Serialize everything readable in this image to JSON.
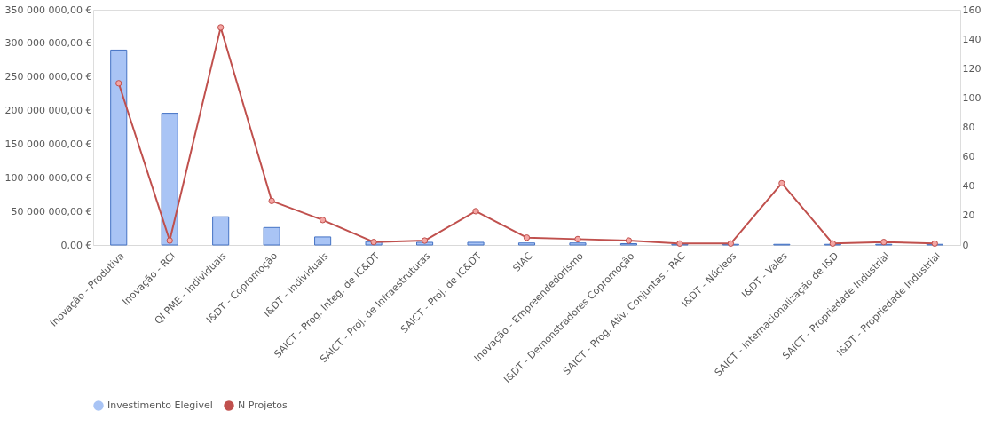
{
  "chart_data": {
    "type": "bar",
    "categories": [
      "Inovação - Produtiva",
      "Inovação - RCI",
      "QI PME - Individuais",
      "I&DT - Copromoção",
      "I&DT - Individuais",
      "SAICT - Prog. Integ. de IC&DT",
      "SAICT - Proj. de Infraestruturas",
      "SAICT - Proj. de IC&DT",
      "SIAC",
      "Inovação - Empreendedorismo",
      "I&DT - Demonstradores Copromoção",
      "SAICT - Prog. Ativ. Conjuntas - PAC",
      "I&DT - Núcleos",
      "I&DT - Vales",
      "SAICT - Internacionalização de I&D",
      "SAICT - Propriedade Industrial",
      "I&DT - Propriedade Industrial"
    ],
    "series": [
      {
        "name": "Investimento Elegivel",
        "color": "#a9c4f5",
        "values": [
          290000000,
          196000000,
          42000000,
          26000000,
          12000000,
          5000000,
          4000000,
          4000000,
          3000000,
          3000000,
          2000000,
          1000000,
          1000000,
          1000000,
          1000000,
          1000000,
          1000000
        ]
      },
      {
        "name": "N Projetos",
        "type": "line",
        "axis": "y2",
        "color": "#c0504d",
        "values": [
          110,
          3,
          148,
          30,
          17,
          2,
          3,
          23,
          5,
          4,
          3,
          1,
          1,
          42,
          1,
          2,
          1
        ]
      }
    ],
    "ylim": [
      0,
      350000000
    ],
    "yticks": [
      {
        "value": 0,
        "label": "0,00 €"
      },
      {
        "value": 50000000,
        "label": "50 000 000,00 €"
      },
      {
        "value": 100000000,
        "label": "100 000 000,00 €"
      },
      {
        "value": 150000000,
        "label": "150 000 000,00 €"
      },
      {
        "value": 200000000,
        "label": "200 000 000,00 €"
      },
      {
        "value": 250000000,
        "label": "250 000 000,00 €"
      },
      {
        "value": 300000000,
        "label": "300 000 000,00 €"
      },
      {
        "value": 350000000,
        "label": "350 000 000,00 €"
      }
    ],
    "y2lim": [
      0,
      160
    ],
    "y2ticks": [
      0,
      20,
      40,
      60,
      80,
      100,
      120,
      140,
      160
    ],
    "grid": false,
    "legend": "bottom",
    "marker": "circle"
  }
}
